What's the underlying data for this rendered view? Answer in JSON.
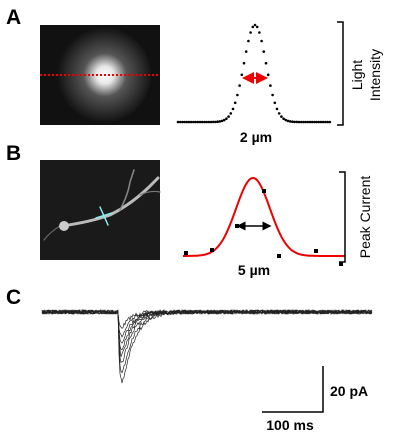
{
  "panels": [
    {
      "label": "A",
      "scale_label": "2 µm",
      "axis_label": [
        "Light",
        "Intensity"
      ]
    },
    {
      "label": "B",
      "scale_label": "5 µm",
      "axis_label": "Peak Current"
    },
    {
      "label": "C",
      "scale_bars": {
        "y": "20 pA",
        "x": "100 ms"
      }
    }
  ]
}
